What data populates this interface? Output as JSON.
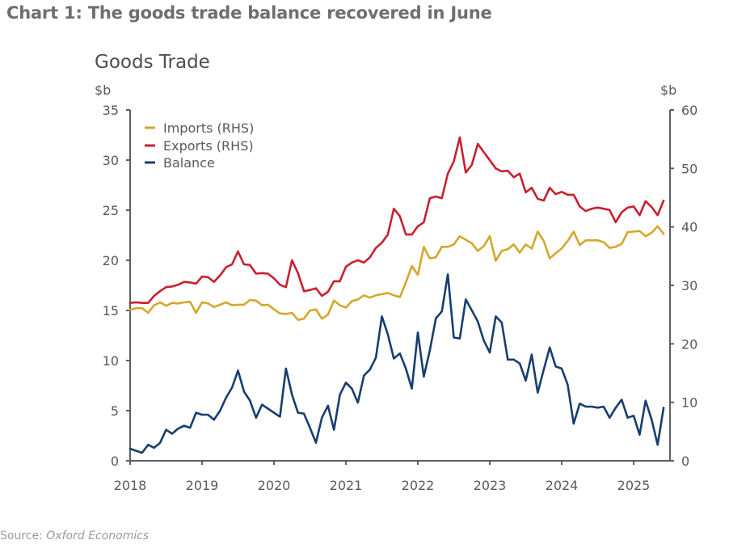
{
  "headline": "Chart 1: The goods trade balance recovered in June",
  "source": {
    "prefix": "Source: ",
    "org": "Oxford Economics"
  },
  "chart_data": {
    "type": "line",
    "title": "Goods Trade",
    "left_axis": {
      "unit": "$b",
      "range": [
        0,
        35
      ],
      "ticks": [
        0,
        5,
        10,
        15,
        20,
        25,
        30,
        35
      ]
    },
    "right_axis": {
      "unit": "$b",
      "range": [
        0,
        60
      ],
      "ticks": [
        0,
        10,
        20,
        30,
        40,
        50,
        60
      ]
    },
    "x_axis": {
      "start": "2018-01",
      "end": "2025-06",
      "frequency": "monthly",
      "tick_labels": [
        "2018",
        "2019",
        "2020",
        "2021",
        "2022",
        "2023",
        "2024",
        "2025"
      ]
    },
    "grid": false,
    "legend": {
      "placement": "top-left"
    },
    "series": [
      {
        "name": "Imports (RHS)",
        "axis": "right",
        "color": "#d4a72c",
        "values": [
          25.8,
          26.1,
          26.1,
          25.3,
          26.6,
          27.1,
          26.5,
          27.0,
          26.9,
          27.1,
          27.2,
          25.3,
          27.1,
          26.9,
          26.3,
          26.7,
          27.1,
          26.6,
          26.7,
          26.7,
          27.5,
          27.4,
          26.6,
          26.7,
          25.9,
          25.2,
          25.1,
          25.3,
          24.1,
          24.3,
          25.7,
          25.9,
          24.3,
          25.0,
          27.4,
          26.6,
          26.2,
          27.3,
          27.6,
          28.3,
          27.9,
          28.3,
          28.5,
          28.7,
          28.3,
          28.0,
          30.5,
          33.3,
          31.8,
          36.6,
          34.6,
          34.8,
          36.6,
          36.6,
          37.0,
          38.4,
          37.8,
          37.2,
          35.9,
          36.7,
          38.4,
          34.2,
          35.9,
          36.2,
          37.0,
          35.6,
          37.0,
          36.3,
          39.2,
          37.6,
          34.6,
          35.5,
          36.3,
          37.6,
          39.2,
          36.9,
          37.7,
          37.7,
          37.7,
          37.4,
          36.4,
          36.6,
          37.1,
          39.1,
          39.2,
          39.3,
          38.4,
          39.0,
          40.1,
          38.8
        ]
      },
      {
        "name": "Exports (RHS)",
        "axis": "right",
        "color": "#c8202f",
        "values": [
          27.0,
          27.1,
          27.0,
          27.0,
          28.2,
          29.0,
          29.7,
          29.8,
          30.1,
          30.6,
          30.5,
          30.3,
          31.5,
          31.4,
          30.6,
          31.7,
          33.1,
          33.6,
          35.8,
          33.6,
          33.5,
          32.0,
          32.1,
          32.0,
          31.2,
          30.1,
          29.7,
          34.3,
          32.1,
          29.0,
          29.2,
          29.5,
          28.2,
          28.9,
          30.7,
          30.7,
          33.2,
          33.9,
          34.3,
          33.9,
          34.8,
          36.4,
          37.3,
          38.7,
          43.1,
          41.8,
          38.7,
          38.7,
          40.1,
          40.8,
          44.9,
          45.2,
          44.9,
          49.1,
          51.2,
          55.3,
          49.3,
          50.6,
          54.2,
          52.8,
          51.4,
          50.0,
          49.5,
          49.6,
          48.5,
          49.1,
          45.9,
          46.7,
          44.8,
          44.5,
          46.7,
          45.6,
          46.0,
          45.5,
          45.5,
          43.5,
          42.7,
          43.1,
          43.3,
          43.1,
          42.9,
          40.8,
          42.5,
          43.3,
          43.5,
          42.0,
          44.4,
          43.4,
          42.0,
          44.5
        ]
      },
      {
        "name": "Balance",
        "axis": "left",
        "color": "#173e6e",
        "values": [
          1.2,
          1.0,
          0.8,
          1.6,
          1.3,
          1.8,
          3.1,
          2.7,
          3.2,
          3.5,
          3.3,
          4.8,
          4.6,
          4.6,
          4.1,
          5.0,
          6.3,
          7.3,
          9.0,
          6.9,
          6.0,
          4.3,
          5.6,
          5.2,
          4.8,
          4.4,
          9.2,
          6.6,
          4.8,
          4.7,
          3.3,
          1.8,
          4.3,
          5.5,
          3.1,
          6.6,
          7.8,
          7.2,
          5.8,
          8.5,
          9.1,
          10.3,
          14.4,
          12.6,
          10.2,
          10.7,
          9.2,
          7.2,
          12.8,
          8.4,
          11.0,
          14.2,
          14.9,
          18.6,
          12.3,
          12.2,
          16.1,
          15.0,
          13.9,
          12.0,
          10.8,
          14.4,
          13.8,
          10.1,
          10.1,
          9.7,
          8.0,
          10.6,
          6.8,
          9.1,
          11.3,
          9.4,
          9.2,
          7.6,
          3.7,
          5.7,
          5.4,
          5.4,
          5.3,
          5.4,
          4.3,
          5.3,
          6.1,
          4.3,
          4.5,
          2.6,
          6.0,
          4.1,
          1.6,
          5.3
        ]
      }
    ]
  }
}
